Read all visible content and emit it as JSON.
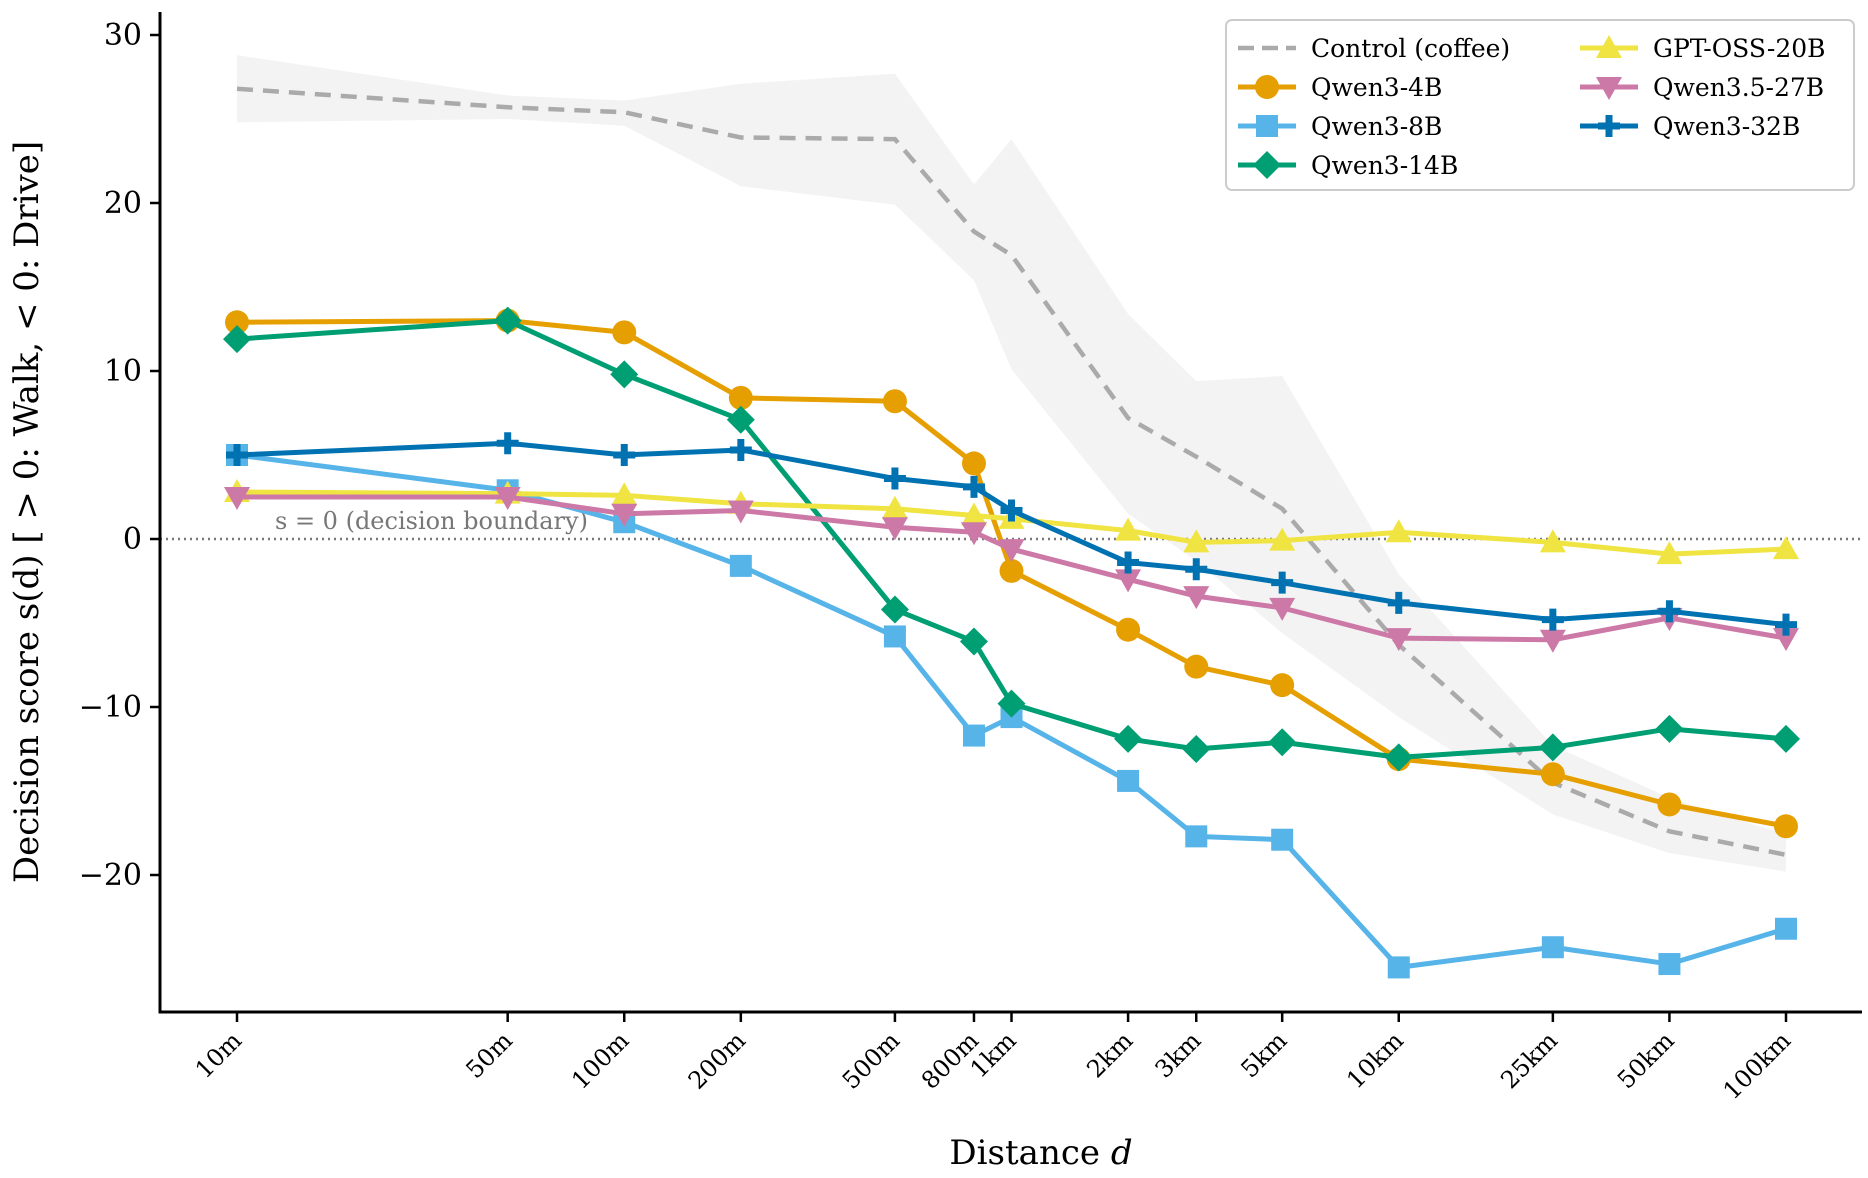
{
  "chart_data": {
    "type": "line",
    "x_scale": "log",
    "xlabel_prefix": "Distance ",
    "xlabel_var": "d",
    "ylabel": "Decision score s(d) [ > 0: Walk,  < 0: Drive]",
    "ylim": [
      -28,
      31
    ],
    "yticks": [
      30,
      20,
      10,
      0,
      -10,
      -20
    ],
    "ytick_labels": [
      "30",
      "20",
      "10",
      "0",
      "−10",
      "−20"
    ],
    "x_meters": [
      10,
      50,
      100,
      200,
      500,
      800,
      1000,
      2000,
      3000,
      5000,
      10000,
      25000,
      50000,
      100000
    ],
    "x_labels": [
      "10m",
      "50m",
      "100m",
      "200m",
      "500m",
      "800m",
      "1km",
      "2km",
      "3km",
      "5km",
      "10km",
      "25km",
      "50km",
      "100km"
    ],
    "boundary_label": "s = 0 (decision boundary)",
    "control": {
      "name": "Control (coffee)",
      "color": "#aaaaaa",
      "values": [
        26.8,
        25.7,
        25.4,
        23.9,
        23.8,
        18.3,
        16.9,
        7.2,
        4.9,
        1.8,
        -6.3,
        -14.5,
        -17.4,
        -18.8
      ],
      "band_upper": [
        28.8,
        26.4,
        26.1,
        27.1,
        27.7,
        21.1,
        23.8,
        13.4,
        9.4,
        9.7,
        -2.1,
        -12.3,
        -15.4,
        -17.6
      ],
      "band_lower": [
        24.8,
        25.0,
        24.6,
        21.0,
        19.9,
        15.4,
        10.1,
        1.5,
        -1.3,
        -5.6,
        -10.6,
        -16.4,
        -18.7,
        -19.8
      ],
      "band_color": "#ebebeb"
    },
    "series": [
      {
        "name": "Qwen3-4B",
        "color": "#E69F00",
        "marker": "circle",
        "values": [
          12.9,
          13.0,
          12.3,
          8.4,
          8.2,
          4.5,
          -1.9,
          -5.4,
          -7.6,
          -8.7,
          -13.1,
          -14.0,
          -15.8,
          -17.1
        ]
      },
      {
        "name": "Qwen3-8B",
        "color": "#56B4E9",
        "marker": "square",
        "values": [
          5.0,
          2.9,
          1.0,
          -1.6,
          -5.8,
          -11.7,
          -10.6,
          -14.4,
          -17.7,
          -17.9,
          -25.5,
          -24.3,
          -25.3,
          -23.2
        ]
      },
      {
        "name": "Qwen3-14B",
        "color": "#009E73",
        "marker": "diamond",
        "values": [
          11.9,
          13.0,
          9.8,
          7.1,
          -4.2,
          -6.1,
          -9.8,
          -11.9,
          -12.5,
          -12.1,
          -13.0,
          -12.4,
          -11.3,
          -11.9
        ]
      },
      {
        "name": "GPT-OSS-20B",
        "color": "#F0E442",
        "marker": "triangle-up",
        "values": [
          2.8,
          2.7,
          2.6,
          2.1,
          1.8,
          1.4,
          1.2,
          0.5,
          -0.2,
          -0.1,
          0.4,
          -0.2,
          -0.9,
          -0.6
        ]
      },
      {
        "name": "Qwen3.5-27B",
        "color": "#CC79A7",
        "marker": "triangle-down",
        "values": [
          2.5,
          2.5,
          1.5,
          1.7,
          0.7,
          0.4,
          -0.6,
          -2.4,
          -3.4,
          -4.1,
          -5.9,
          -6.0,
          -4.7,
          -5.9
        ]
      },
      {
        "name": "Qwen3-32B",
        "color": "#0072B2",
        "marker": "plus",
        "values": [
          5.0,
          5.7,
          5.0,
          5.3,
          3.6,
          3.1,
          1.7,
          -1.4,
          -1.8,
          -2.6,
          -3.8,
          -4.8,
          -4.3,
          -5.1
        ]
      }
    ]
  }
}
